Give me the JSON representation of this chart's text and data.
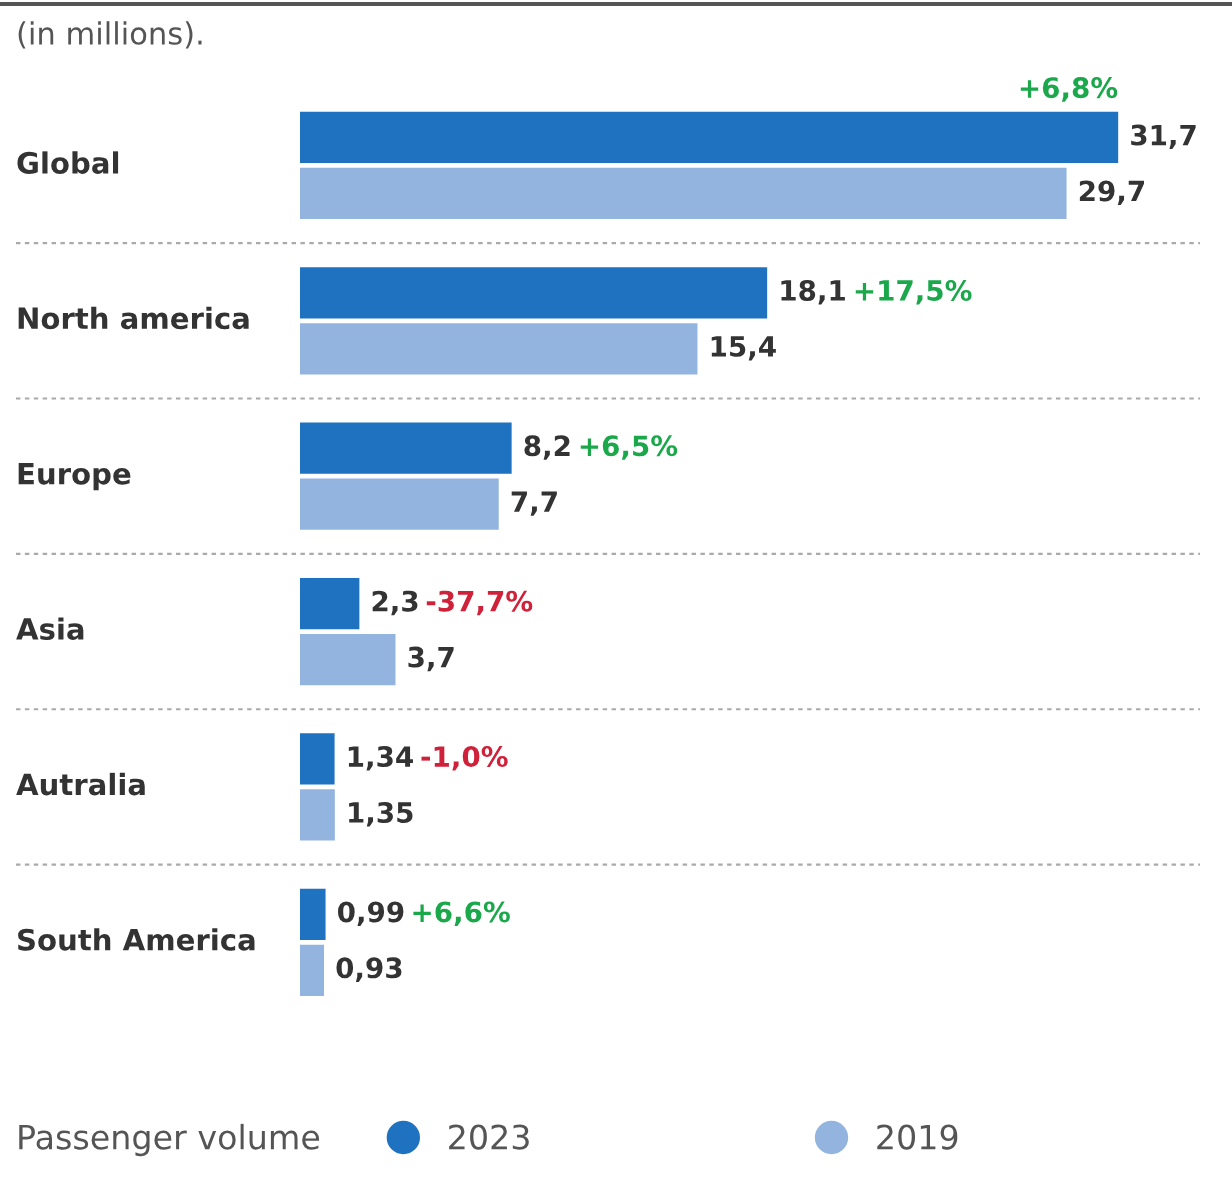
{
  "chart_data": {
    "type": "bar",
    "orientation": "horizontal",
    "title": "(in millions).",
    "categories": [
      "Global",
      "North america",
      "Europe",
      "Asia",
      "Autralia",
      "South America"
    ],
    "series": [
      {
        "name": "2023",
        "color": "#1f72c0",
        "values": [
          31.7,
          18.1,
          8.2,
          2.3,
          1.34,
          0.99
        ],
        "value_labels": [
          "31,7",
          "18,1",
          "8,2",
          "2,3",
          "1,34",
          "0,99"
        ]
      },
      {
        "name": "2019",
        "color": "#94b4e0",
        "values": [
          29.7,
          15.4,
          7.7,
          3.7,
          1.35,
          0.93
        ],
        "value_labels": [
          "29,7",
          "15,4",
          "7,7",
          "3,7",
          "1,35",
          "0,93"
        ]
      }
    ],
    "annotations": [
      "+6,8%",
      "+17,5%",
      "+6,5%",
      "-37,7%",
      "-1,0%",
      "+6,6%"
    ],
    "legend_title": "Passenger volume",
    "legend": "bottom"
  }
}
